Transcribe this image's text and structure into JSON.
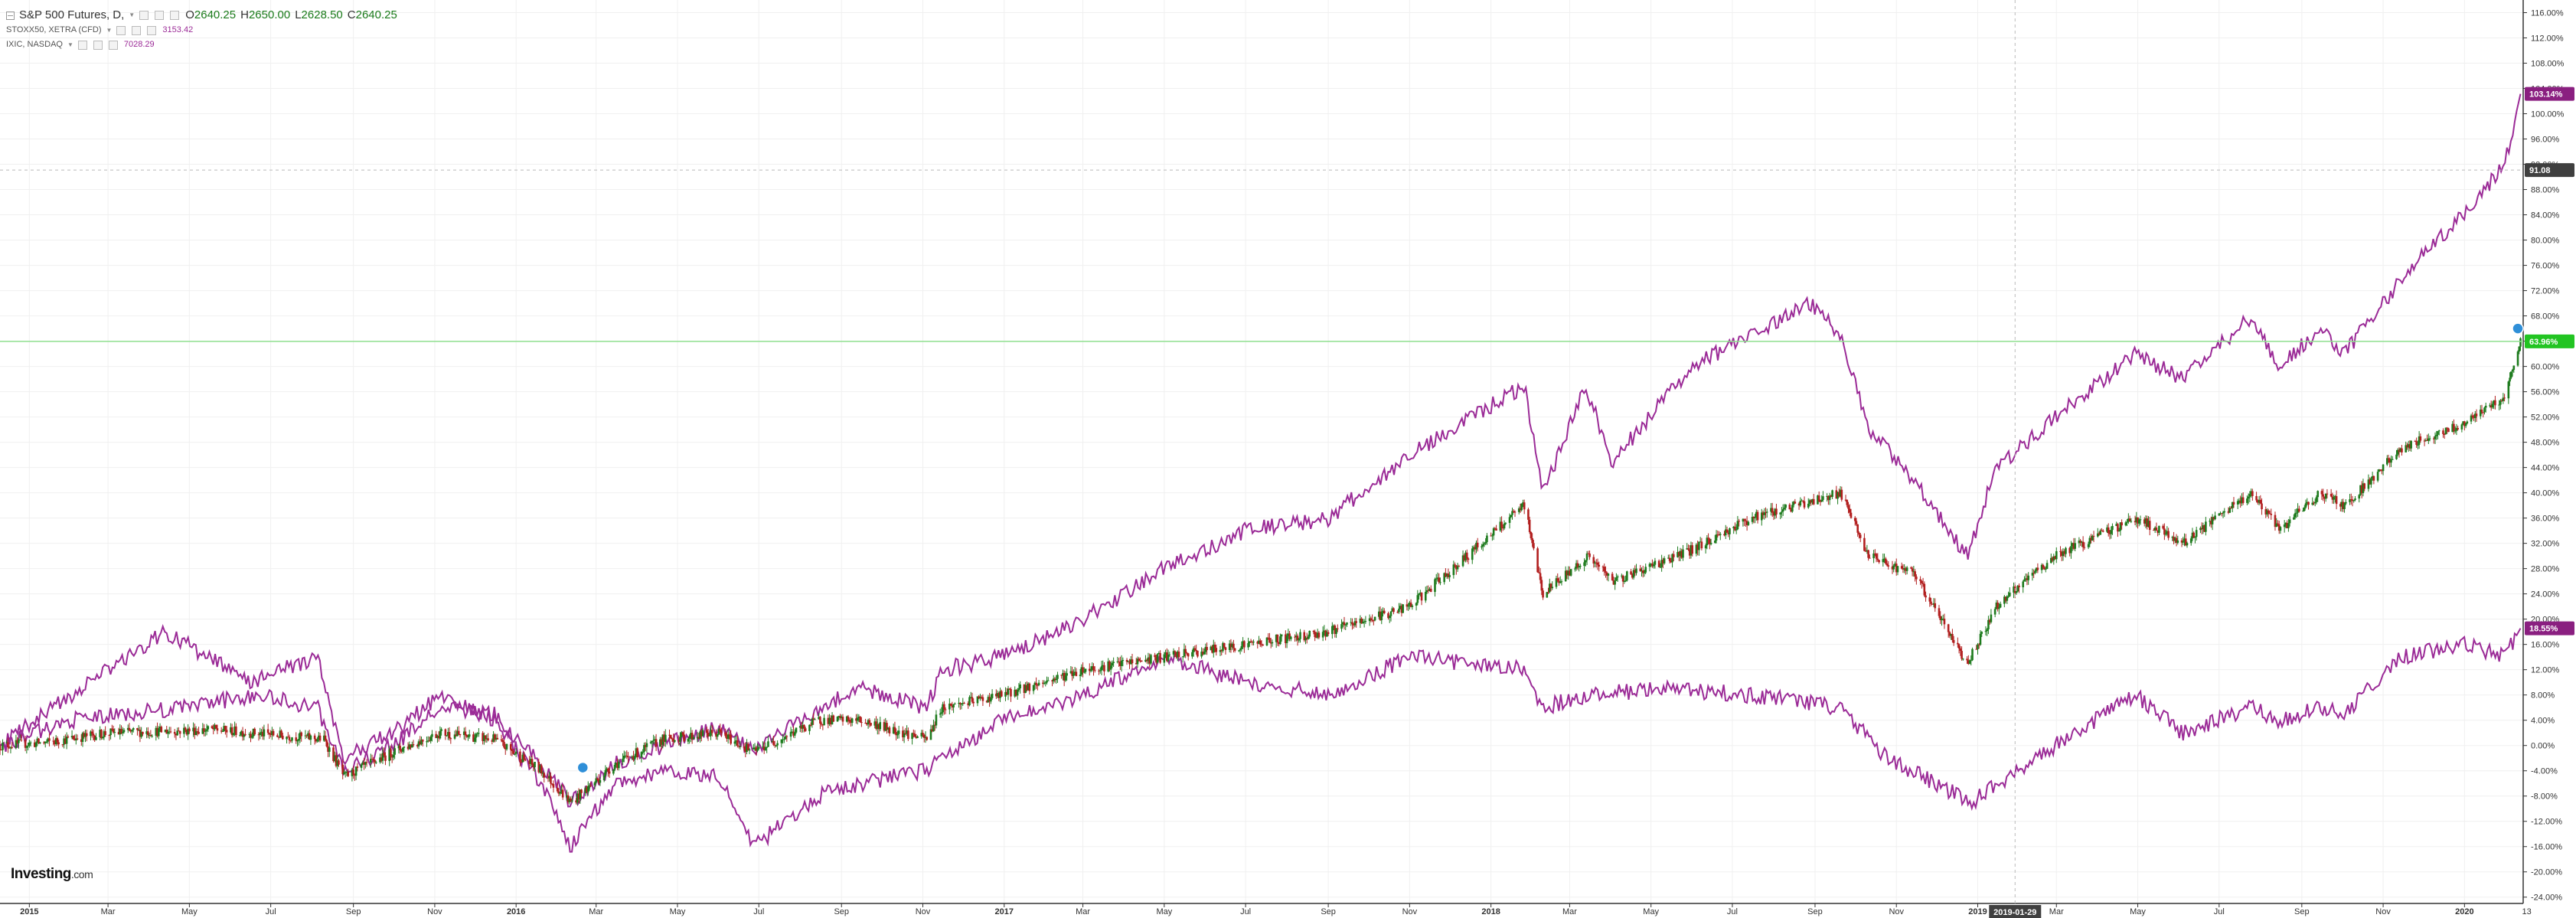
{
  "legend": {
    "main_symbol": "S&P 500 Futures, D,",
    "ohlc": [
      {
        "k": "O",
        "v": "2640.25"
      },
      {
        "k": "H",
        "v": "2650.00"
      },
      {
        "k": "L",
        "v": "2628.50"
      },
      {
        "k": "C",
        "v": "2640.25"
      }
    ],
    "compare": [
      {
        "symbol": "STOXX50, XETRA (CFD)",
        "value": "3153.42"
      },
      {
        "symbol": "IXIC, NASDAQ",
        "value": "7028.29"
      }
    ]
  },
  "logo": {
    "text": "Investing",
    "suffix": ".com"
  },
  "markers": {
    "crosshair_price": "91.08",
    "crosshair_date": "2019-01-29",
    "last_label": "13"
  },
  "colors": {
    "up": "#1e7b1e",
    "down": "#b21f1f",
    "compare": "#9b2b97",
    "accent": "#17c417",
    "axis": "#333333"
  },
  "chart_data": {
    "type": "line",
    "x_axis": {
      "type": "date",
      "range": [
        "2014-12-10",
        "2020-02-14"
      ],
      "ticks": [
        {
          "date": "2015-01-01",
          "label": "2015",
          "bold": true
        },
        {
          "date": "2015-03-01",
          "label": "Mar"
        },
        {
          "date": "2015-05-01",
          "label": "May"
        },
        {
          "date": "2015-07-01",
          "label": "Jul"
        },
        {
          "date": "2015-09-01",
          "label": "Sep"
        },
        {
          "date": "2015-11-01",
          "label": "Nov"
        },
        {
          "date": "2016-01-01",
          "label": "2016",
          "bold": true
        },
        {
          "date": "2016-03-01",
          "label": "Mar"
        },
        {
          "date": "2016-05-01",
          "label": "May"
        },
        {
          "date": "2016-07-01",
          "label": "Jul"
        },
        {
          "date": "2016-09-01",
          "label": "Sep"
        },
        {
          "date": "2016-11-01",
          "label": "Nov"
        },
        {
          "date": "2017-01-01",
          "label": "2017",
          "bold": true
        },
        {
          "date": "2017-03-01",
          "label": "Mar"
        },
        {
          "date": "2017-05-01",
          "label": "May"
        },
        {
          "date": "2017-07-01",
          "label": "Jul"
        },
        {
          "date": "2017-09-01",
          "label": "Sep"
        },
        {
          "date": "2017-11-01",
          "label": "Nov"
        },
        {
          "date": "2018-01-01",
          "label": "2018",
          "bold": true
        },
        {
          "date": "2018-03-01",
          "label": "Mar"
        },
        {
          "date": "2018-05-01",
          "label": "May"
        },
        {
          "date": "2018-07-01",
          "label": "Jul"
        },
        {
          "date": "2018-09-01",
          "label": "Sep"
        },
        {
          "date": "2018-11-01",
          "label": "Nov"
        },
        {
          "date": "2019-01-01",
          "label": "2019",
          "bold": true
        },
        {
          "date": "2019-03-01",
          "label": "Mar"
        },
        {
          "date": "2019-05-01",
          "label": "May"
        },
        {
          "date": "2019-07-01",
          "label": "Jul"
        },
        {
          "date": "2019-09-01",
          "label": "Sep"
        },
        {
          "date": "2019-11-01",
          "label": "Nov"
        },
        {
          "date": "2020-01-01",
          "label": "2020",
          "bold": true
        }
      ]
    },
    "y_axis": {
      "unit": "%",
      "range": [
        -25,
        118
      ],
      "ticks": [
        116,
        112,
        108,
        104,
        100,
        96,
        92,
        88,
        84,
        80,
        76,
        72,
        68,
        64,
        60,
        56,
        52,
        48,
        44,
        40,
        36,
        32,
        28,
        24,
        20,
        16,
        12,
        8,
        4,
        0,
        -4,
        -8,
        -12,
        -16,
        -20,
        -24
      ],
      "tick_labels": [
        "116.00%",
        "112.00%",
        "108.00%",
        "104.00%",
        "100.00%",
        "96.00%",
        "92.00%",
        "88.00%",
        "84.00%",
        "80.00%",
        "76.00%",
        "72.00%",
        "68.00%",
        "64.00%",
        "60.00%",
        "56.00%",
        "52.00%",
        "48.00%",
        "44.00%",
        "40.00%",
        "36.00%",
        "32.00%",
        "28.00%",
        "24.00%",
        "20.00%",
        "16.00%",
        "12.00%",
        "8.00%",
        "4.00%",
        "0.00%",
        "-4.00%",
        "-8.00%",
        "-12.00%",
        "-16.00%",
        "-20.00%",
        "-24.00%"
      ]
    },
    "grid": true,
    "series": [
      {
        "style": "candles",
        "color_up": "#1e7b1e",
        "color_down": "#b21f1f",
        "last_label": "63.96%",
        "x": [
          "2014-12-10",
          "2015-01-15",
          "2015-03-01",
          "2015-05-20",
          "2015-08-10",
          "2015-08-25",
          "2015-10-01",
          "2015-11-05",
          "2015-12-15",
          "2016-01-20",
          "2016-02-11",
          "2016-03-15",
          "2016-04-20",
          "2016-06-01",
          "2016-06-27",
          "2016-08-15",
          "2016-09-15",
          "2016-11-04",
          "2016-11-15",
          "2016-12-31",
          "2017-03-01",
          "2017-05-01",
          "2017-07-01",
          "2017-09-01",
          "2017-11-01",
          "2018-01-26",
          "2018-02-09",
          "2018-03-15",
          "2018-04-02",
          "2018-06-01",
          "2018-07-15",
          "2018-09-20",
          "2018-10-11",
          "2018-11-15",
          "2018-12-24",
          "2019-01-15",
          "2019-02-28",
          "2019-04-30",
          "2019-06-03",
          "2019-07-26",
          "2019-08-15",
          "2019-09-15",
          "2019-10-03",
          "2019-11-15",
          "2019-12-31",
          "2020-01-31",
          "2020-02-12"
        ],
        "y": [
          0,
          0.5,
          2,
          2.5,
          1,
          -5,
          -1,
          2,
          1,
          -4,
          -9,
          -3,
          1,
          2,
          -1,
          4,
          4,
          1,
          6,
          8,
          12,
          14,
          16,
          18,
          22,
          38,
          24,
          30,
          26,
          31,
          36,
          40,
          30,
          27,
          13,
          22,
          30,
          36,
          32,
          40,
          34,
          40,
          38,
          47,
          51,
          55,
          63.96
        ]
      },
      {
        "style": "line",
        "color": "#9b2b97",
        "last_label": "103.14%",
        "x": [
          "2014-12-10",
          "2015-02-01",
          "2015-04-26",
          "2015-06-20",
          "2015-08-05",
          "2015-08-25",
          "2015-10-01",
          "2015-11-05",
          "2015-12-15",
          "2016-01-20",
          "2016-02-11",
          "2016-03-15",
          "2016-04-20",
          "2016-06-01",
          "2016-06-27",
          "2016-08-15",
          "2016-09-15",
          "2016-11-04",
          "2016-11-15",
          "2016-12-31",
          "2017-03-01",
          "2017-05-01",
          "2017-07-01",
          "2017-09-01",
          "2017-11-01",
          "2018-01-26",
          "2018-02-09",
          "2018-03-13",
          "2018-04-02",
          "2018-06-01",
          "2018-08-29",
          "2018-09-20",
          "2018-10-11",
          "2018-11-15",
          "2018-12-24",
          "2019-01-15",
          "2019-02-28",
          "2019-04-30",
          "2019-06-03",
          "2019-07-26",
          "2019-08-15",
          "2019-09-15",
          "2019-10-03",
          "2019-11-15",
          "2019-12-31",
          "2020-01-31",
          "2020-02-12"
        ],
        "y": [
          0,
          4,
          6,
          8,
          6,
          -4,
          0,
          6,
          5,
          -3,
          -9,
          -3,
          0,
          3,
          -1,
          6,
          9,
          6,
          12,
          14,
          20,
          28,
          34,
          36,
          46,
          57,
          40,
          57,
          45,
          60,
          70,
          65,
          50,
          42,
          30,
          44,
          52,
          62,
          58,
          68,
          60,
          66,
          62,
          74,
          84,
          92,
          103.14
        ]
      },
      {
        "style": "line",
        "color": "#9b2b97",
        "last_label": "18.55%",
        "x": [
          "2014-12-10",
          "2015-02-15",
          "2015-04-13",
          "2015-06-15",
          "2015-08-05",
          "2015-08-24",
          "2015-10-01",
          "2015-11-05",
          "2015-12-15",
          "2016-01-20",
          "2016-02-11",
          "2016-03-15",
          "2016-04-20",
          "2016-06-01",
          "2016-06-27",
          "2016-08-15",
          "2016-09-15",
          "2016-11-04",
          "2016-11-15",
          "2016-12-31",
          "2017-03-01",
          "2017-05-01",
          "2017-07-01",
          "2017-09-01",
          "2017-11-01",
          "2018-01-26",
          "2018-02-09",
          "2018-03-15",
          "2018-05-15",
          "2018-07-15",
          "2018-09-20",
          "2018-10-25",
          "2018-12-27",
          "2019-02-28",
          "2019-04-30",
          "2019-06-03",
          "2019-07-26",
          "2019-08-15",
          "2019-09-15",
          "2019-10-03",
          "2019-11-15",
          "2019-12-31",
          "2020-01-31",
          "2020-02-12"
        ],
        "y": [
          0,
          10,
          18,
          10,
          14,
          -2,
          2,
          8,
          4,
          -6,
          -16,
          -6,
          -4,
          -5,
          -16,
          -8,
          -6,
          -4,
          -2,
          4,
          8,
          14,
          10,
          8,
          14,
          12,
          6,
          8,
          9,
          8,
          6,
          -2,
          -9,
          0,
          8,
          2,
          6,
          4,
          6,
          5,
          14,
          16,
          14,
          18.55
        ]
      }
    ]
  }
}
